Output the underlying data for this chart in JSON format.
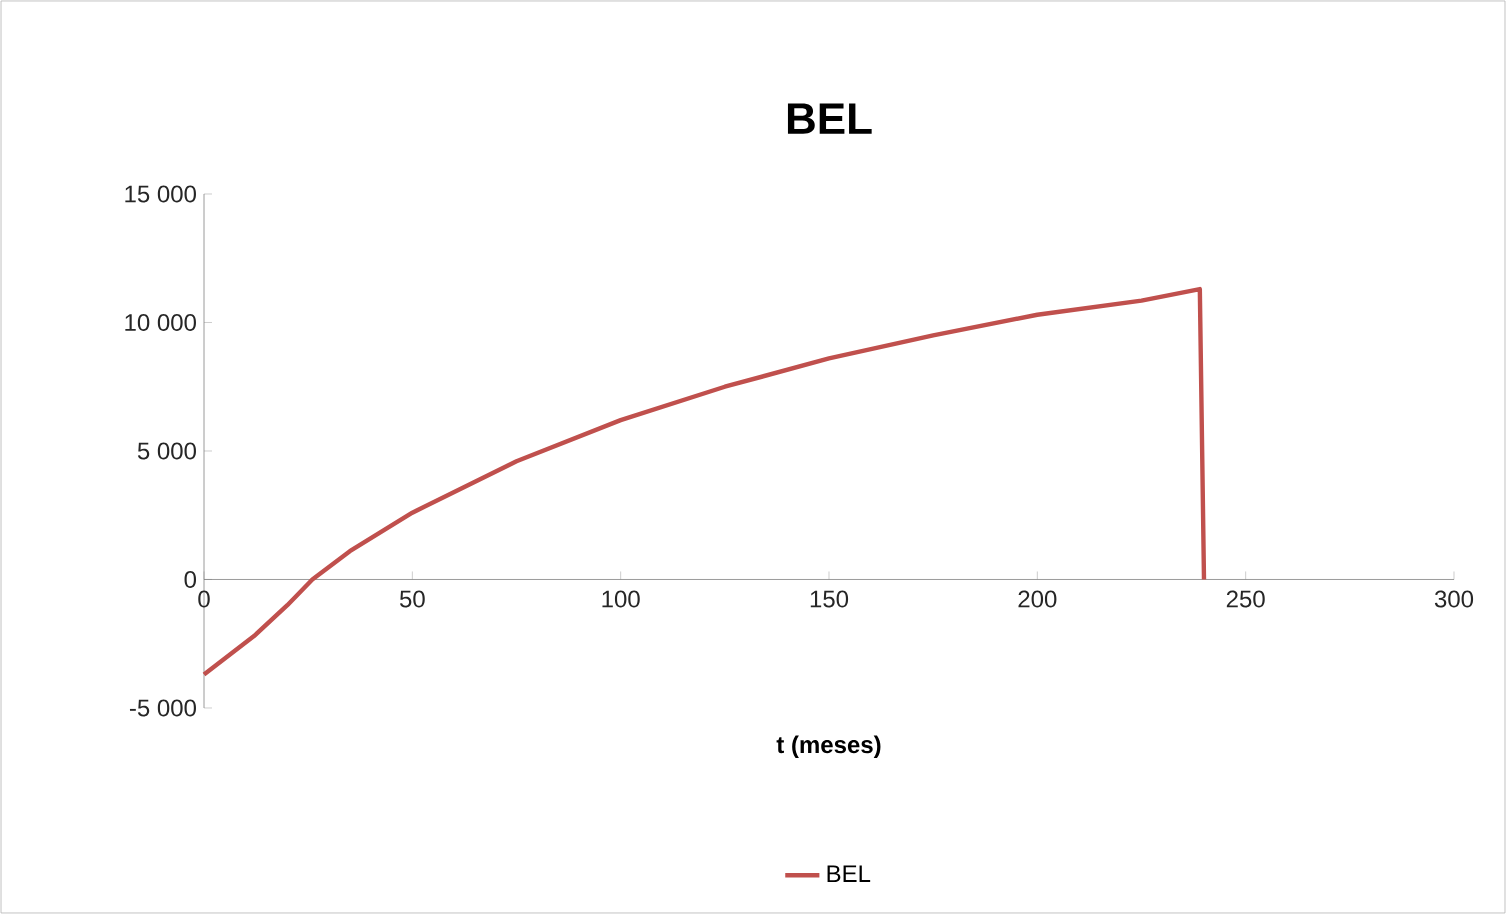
{
  "chart_data": {
    "type": "line",
    "title": "BEL",
    "xlabel": "t (meses)",
    "x": [
      0,
      12,
      20,
      26,
      35,
      50,
      75,
      100,
      125,
      150,
      175,
      200,
      225,
      239,
      240
    ],
    "series": [
      {
        "name": "BEL",
        "color": "#c0504d",
        "values": [
          -3700,
          -2200,
          -1000,
          0,
          1100,
          2600,
          4600,
          6200,
          7500,
          8600,
          9500,
          10300,
          10850,
          11300,
          0
        ]
      }
    ],
    "xlim": [
      0,
      300
    ],
    "xticks": [
      0,
      50,
      100,
      150,
      200,
      250,
      300
    ],
    "ylim": [
      -5000,
      15000
    ],
    "yticks": [
      {
        "value": -5000,
        "label": "-5 000"
      },
      0,
      {
        "value": 5000,
        "label": "5 000"
      },
      {
        "value": 10000,
        "label": "10 000"
      },
      {
        "value": 15000,
        "label": "15 000"
      }
    ],
    "legend": "bottom"
  }
}
